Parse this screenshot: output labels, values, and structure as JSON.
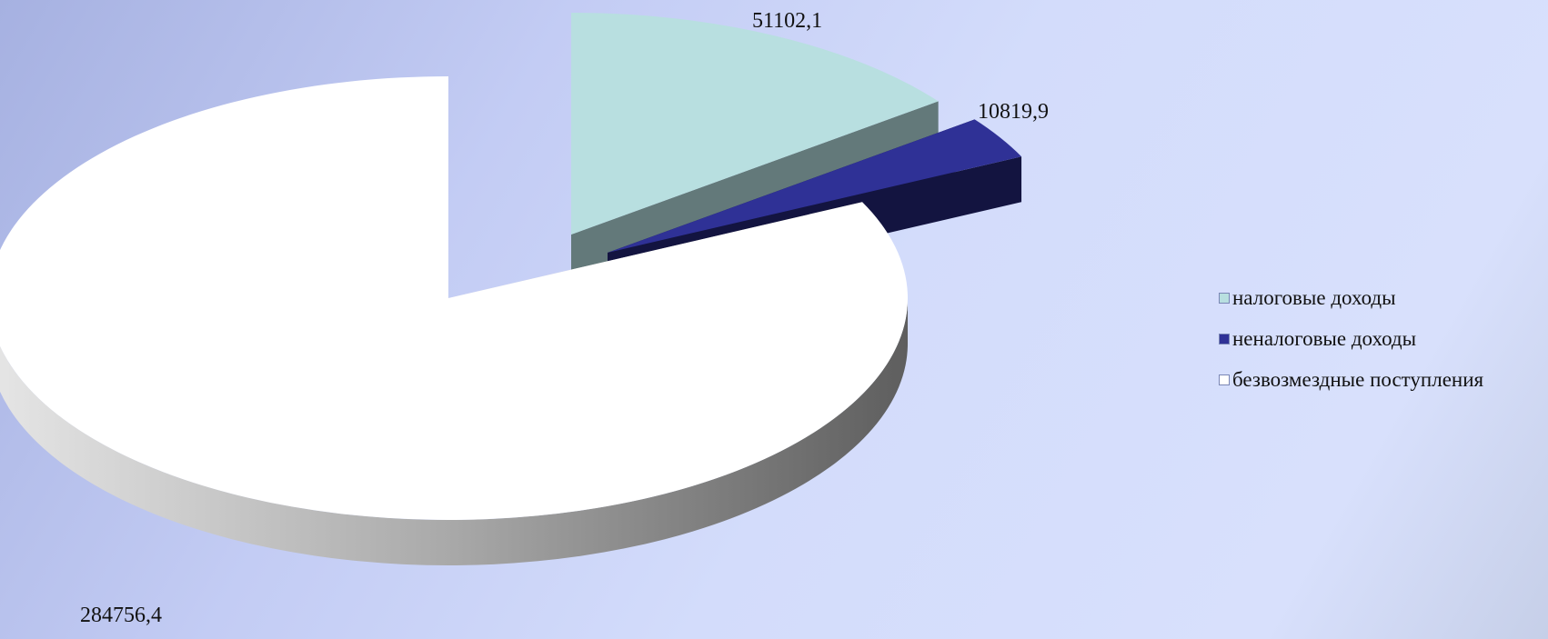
{
  "chart_data": {
    "type": "pie",
    "title": "",
    "style": "3d-exploded",
    "legend_position": "right",
    "labels": [
      "налоговые доходы",
      "неналоговые доходы",
      "безвозмездные поступления"
    ],
    "values": [
      51102.1,
      10819.9,
      284756.4
    ],
    "data_labels": [
      "51102,1",
      "10819,9",
      "284756,4"
    ],
    "colors": [
      "#b8dfe0",
      "#2f3196",
      "#ffffff"
    ],
    "side_colors": [
      "#63797a",
      "#131440",
      "#8c8c8c"
    ]
  }
}
